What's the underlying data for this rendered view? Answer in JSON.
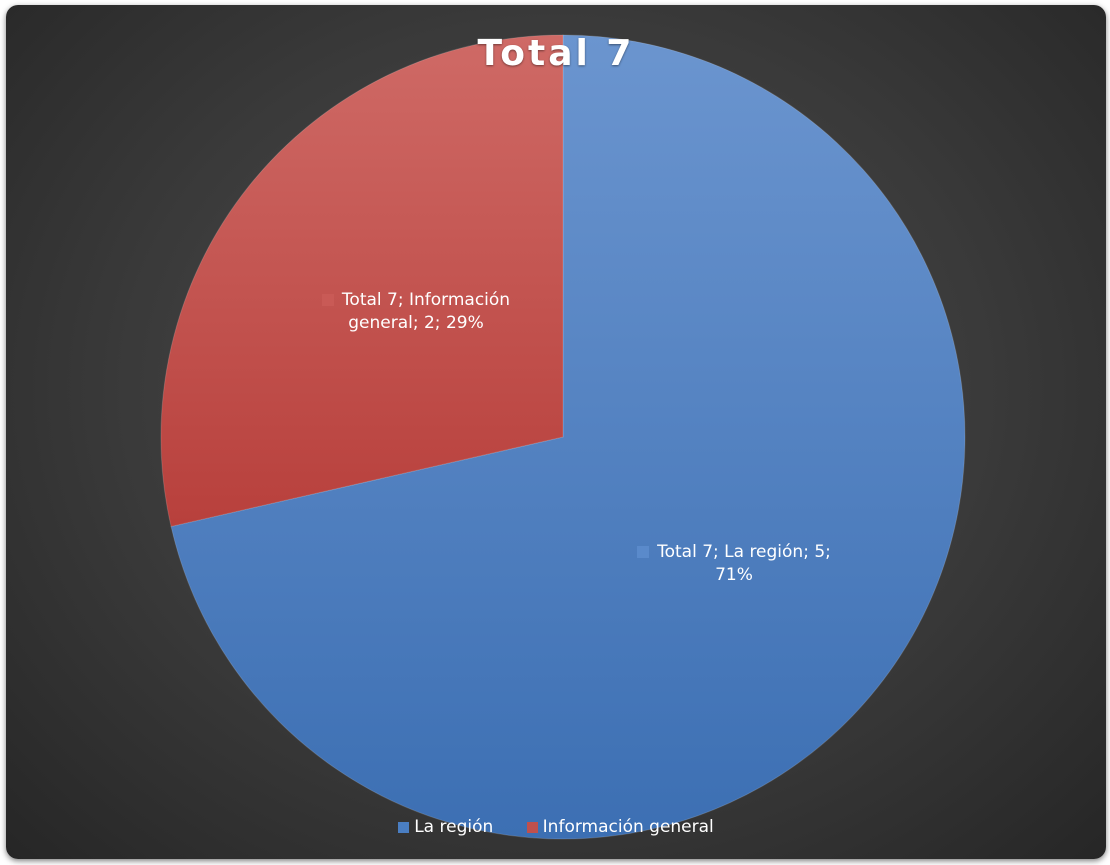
{
  "chart_data": {
    "type": "pie",
    "title": "Total 7",
    "categories": [
      "La región",
      "Información general"
    ],
    "values": [
      5,
      2
    ],
    "percentages": [
      "71%",
      "29%"
    ],
    "colors": [
      "#4a7ec2",
      "#c0504d"
    ],
    "data_labels": [
      {
        "line1": "Total 7; La región; 5;",
        "line2": "71%"
      },
      {
        "line1": "Total 7; Información",
        "line2": "general; 2; 29%"
      }
    ],
    "legend_position": "bottom",
    "start_angle_deg": 0,
    "direction": "clockwise"
  }
}
